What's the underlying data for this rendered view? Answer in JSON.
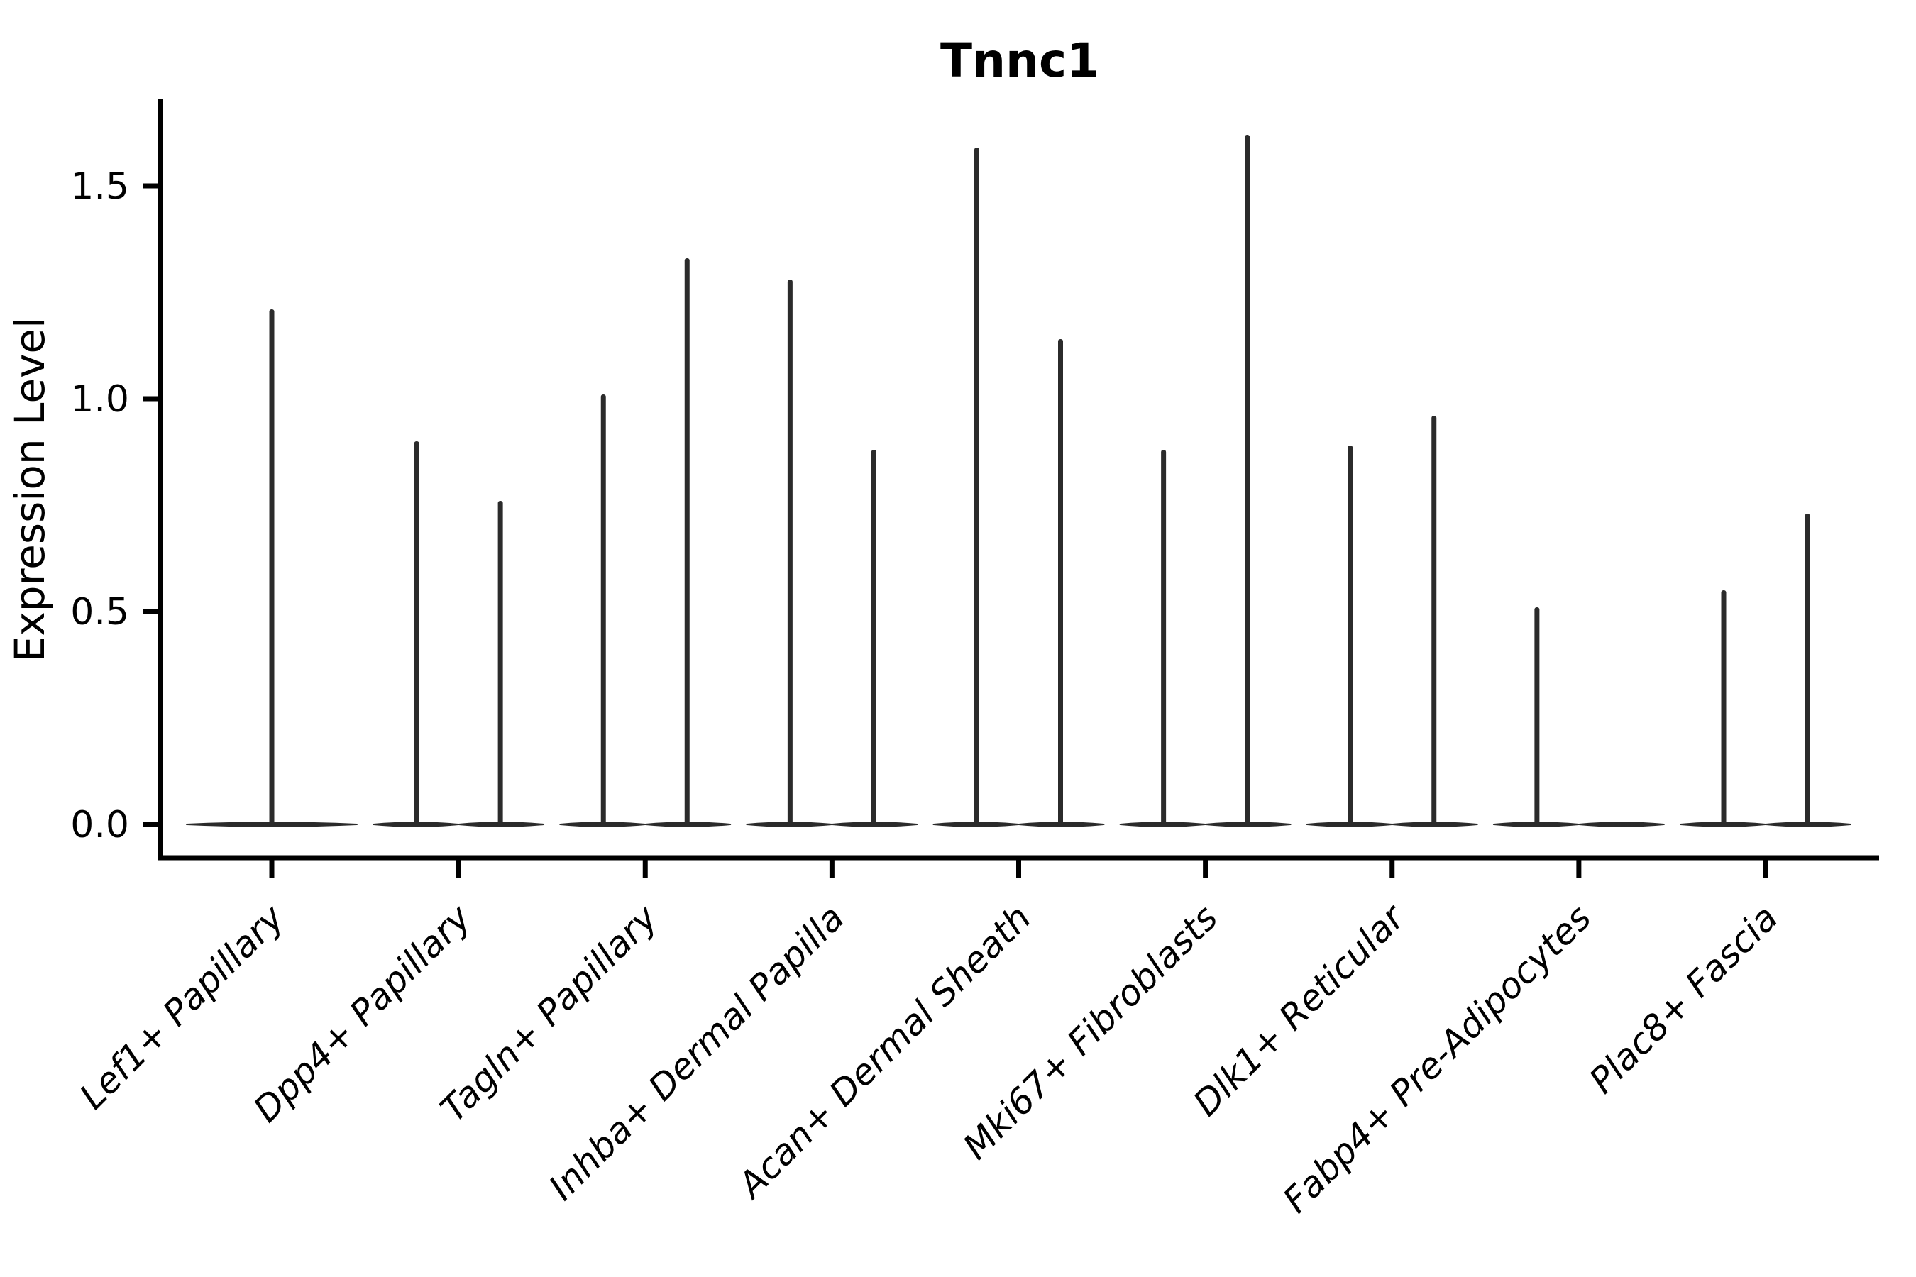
{
  "chart_data": {
    "type": "violin",
    "title": "Tnnc1",
    "xlabel": "",
    "ylabel": "Expression Level",
    "ytick_labels": [
      "0.0",
      "0.5",
      "1.0",
      "1.5"
    ],
    "yticks": [
      0.0,
      0.5,
      1.0,
      1.5
    ],
    "ylim": [
      -0.08,
      1.7
    ],
    "grid": false,
    "legend": "none",
    "categories": [
      "Lef1+ Papillary",
      "Dpp4+ Papillary",
      "Tagln+ Papillary",
      "Inhba+ Dermal Papilla",
      "Acan+ Dermal Sheath",
      "Mki67+ Fibroblasts",
      "Dlk1+ Reticular",
      "Fabp4+ Pre-Adipocytes",
      "Plac8+ Fascia"
    ],
    "violins": [
      {
        "category": "Lef1+ Papillary",
        "spikes": [
          {
            "position": "center",
            "max": 1.21
          }
        ]
      },
      {
        "category": "Dpp4+ Papillary",
        "spikes": [
          {
            "position": "left",
            "max": 0.9
          },
          {
            "position": "right",
            "max": 0.76
          }
        ]
      },
      {
        "category": "Tagln+ Papillary",
        "spikes": [
          {
            "position": "left",
            "max": 1.01
          },
          {
            "position": "right",
            "max": 1.33
          }
        ]
      },
      {
        "category": "Inhba+ Dermal Papilla",
        "spikes": [
          {
            "position": "left",
            "max": 1.28
          },
          {
            "position": "right",
            "max": 0.88
          }
        ]
      },
      {
        "category": "Acan+ Dermal Sheath",
        "spikes": [
          {
            "position": "left",
            "max": 1.59
          },
          {
            "position": "right",
            "max": 1.14
          }
        ]
      },
      {
        "category": "Mki67+ Fibroblasts",
        "spikes": [
          {
            "position": "left",
            "max": 0.88
          },
          {
            "position": "right",
            "max": 1.62
          }
        ]
      },
      {
        "category": "Dlk1+ Reticular",
        "spikes": [
          {
            "position": "left",
            "max": 0.89
          },
          {
            "position": "right",
            "max": 0.96
          }
        ]
      },
      {
        "category": "Fabp4+ Pre-Adipocytes",
        "spikes": [
          {
            "position": "left",
            "max": 0.51
          },
          {
            "position": "right",
            "max": 0.0
          }
        ]
      },
      {
        "category": "Plac8+ Fascia",
        "spikes": [
          {
            "position": "left",
            "max": 0.55
          },
          {
            "position": "right",
            "max": 0.73
          }
        ]
      }
    ],
    "colors": {
      "violin": "#2b2b2b",
      "axis": "#000000",
      "text": "#000000",
      "background": "#ffffff"
    }
  }
}
